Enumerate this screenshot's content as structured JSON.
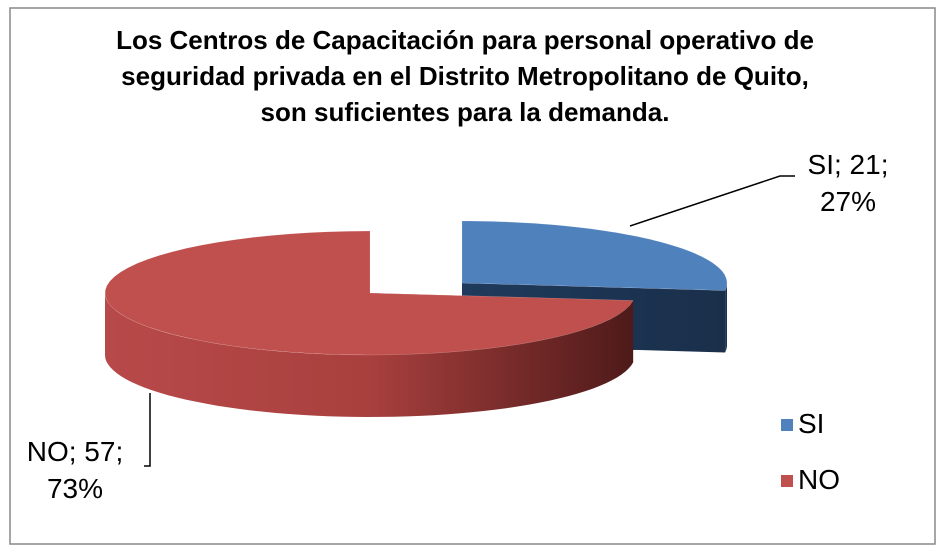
{
  "chart_data": {
    "type": "pie3d",
    "title": "Los Centros de Capacitación  para personal operativo de seguridad privada en el Distrito Metropolitano de Quito, son suficientes para la demanda.",
    "categories": [
      "SI",
      "NO"
    ],
    "values": [
      21,
      57
    ],
    "value_labels": [
      "SI; 21; 27%",
      "NO; 57; 73%"
    ],
    "colors": [
      "#4f81bd",
      "#c0504d"
    ],
    "legend": "right"
  }
}
